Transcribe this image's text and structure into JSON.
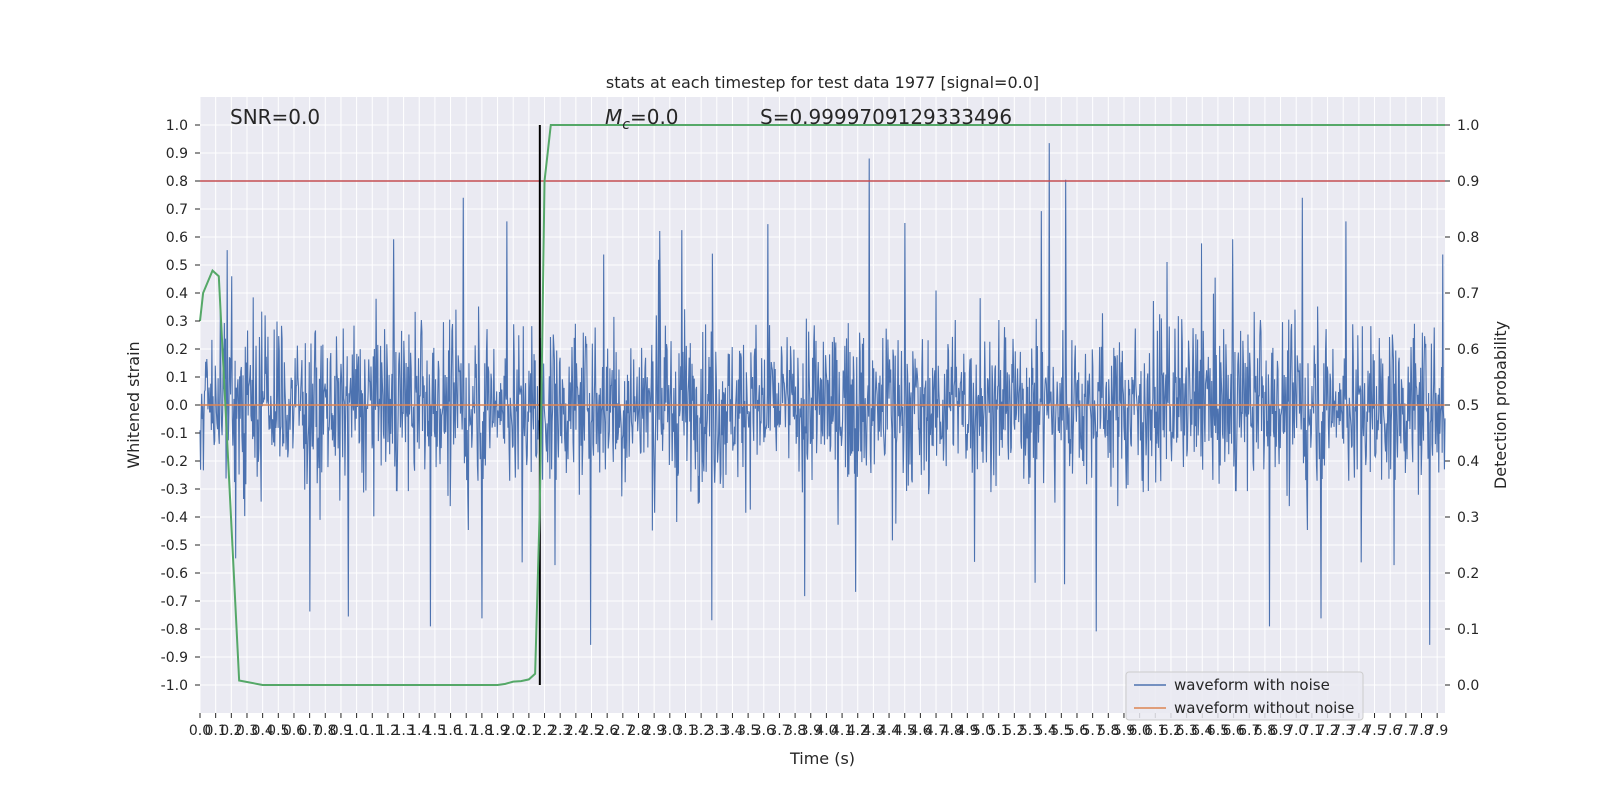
{
  "chart_data": {
    "type": "line",
    "title": "stats at each timestep for test data 1977 [signal=0.0]",
    "xlabel": "Time (s)",
    "ylabel": "Whitened strain",
    "y2label": "Detection probability",
    "xlim": [
      0.0,
      7.95
    ],
    "ylim": [
      -1.1,
      1.1
    ],
    "y2lim": [
      -0.05,
      1.05
    ],
    "x_tick_step": 0.1,
    "y_ticks": [
      -1.0,
      -0.9,
      -0.8,
      -0.7,
      -0.6,
      -0.5,
      -0.4,
      -0.3,
      -0.2,
      -0.1,
      0.0,
      0.1,
      0.2,
      0.3,
      0.4,
      0.5,
      0.6,
      0.7,
      0.8,
      0.9,
      1.0
    ],
    "y2_ticks": [
      0.0,
      0.1,
      0.2,
      0.3,
      0.4,
      0.5,
      0.6,
      0.7,
      0.8,
      0.9,
      1.0
    ],
    "grid": true,
    "legend_position": "bottom-right",
    "annotations": {
      "snr": "SNR=0.0",
      "mc_symbol": "M",
      "mc_subscript": "c",
      "mc_value": "=0.0",
      "s": "S=0.9999709129333496"
    },
    "threshold_line": {
      "axis": "right",
      "value": 0.9,
      "color": "#c44e52"
    },
    "event_marker": {
      "x": 2.17,
      "color": "#000000"
    },
    "series": [
      {
        "name": "waveform with noise",
        "axis": "left",
        "color": "#4c72b0",
        "style": "dense-noise",
        "approx_band": [
          -0.6,
          0.6
        ],
        "approx_peak_max": 1.0,
        "approx_peak_min": -0.96
      },
      {
        "name": "waveform without noise",
        "axis": "left",
        "color": "#dd8452",
        "x": [
          0.0,
          7.95
        ],
        "y": [
          0.0,
          0.0
        ]
      },
      {
        "axis": "right",
        "color": "#55a868",
        "x": [
          0.0,
          0.02,
          0.05,
          0.08,
          0.12,
          0.18,
          0.25,
          0.4,
          0.6,
          1.0,
          1.5,
          1.9,
          1.95,
          2.0,
          2.05,
          2.1,
          2.14,
          2.17,
          2.2,
          2.24,
          2.28,
          3.0,
          4.0,
          5.0,
          6.0,
          7.0,
          7.95
        ],
        "y": [
          0.65,
          0.7,
          0.72,
          0.74,
          0.73,
          0.4,
          0.008,
          0.0,
          0.0,
          0.0,
          0.0,
          0.0,
          0.002,
          0.006,
          0.007,
          0.01,
          0.02,
          0.32,
          0.9,
          1.0,
          1.0,
          1.0,
          1.0,
          1.0,
          1.0,
          1.0,
          1.0
        ]
      }
    ]
  }
}
